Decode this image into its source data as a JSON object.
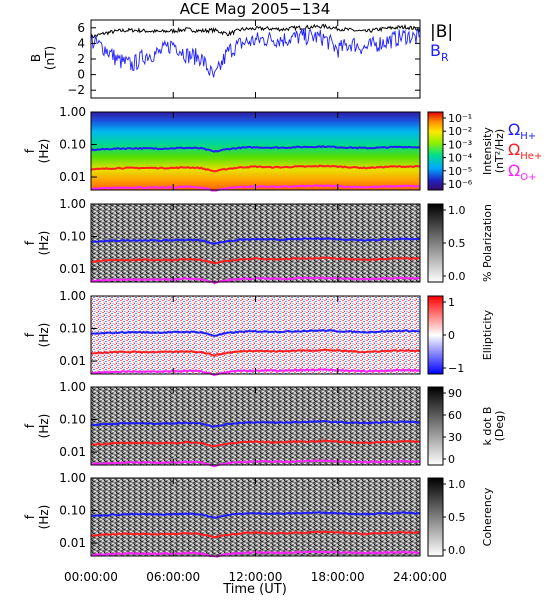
{
  "title": "ACE Mag 2005−134",
  "time_axis": {
    "label": "Time (UT)",
    "ticks": [
      "00:00:00",
      "06:00:00",
      "12:00:00",
      "18:00:00",
      "24:00:00"
    ],
    "range_hours": [
      0,
      24
    ]
  },
  "colors": {
    "B_total": "#000000",
    "B_R": "#1f1fff",
    "H_plus": "#1f1fff",
    "He_plus": "#ff1f1f",
    "O_plus": "#ff22ff"
  },
  "chart_data": [
    {
      "type": "line",
      "panel": "magnetic-field",
      "ylabel": "B",
      "yunit": "(nT)",
      "ylim": [
        -3,
        7
      ],
      "yticks": [
        "6",
        "4",
        "2",
        "0",
        "−2"
      ],
      "legend": [
        "|B|",
        "B"
      ],
      "legend_sub": [
        "",
        "R"
      ],
      "series": [
        {
          "name": "|B|",
          "x": [
            0,
            1,
            2,
            3,
            4,
            5,
            6,
            7,
            8,
            9,
            10,
            11,
            12,
            13,
            14,
            15,
            16,
            17,
            18,
            19,
            20,
            21,
            22,
            23,
            24
          ],
          "values": [
            4.8,
            5.3,
            5.6,
            5.7,
            5.6,
            5.5,
            5.6,
            5.8,
            5.6,
            5.7,
            5.2,
            5.8,
            5.9,
            5.9,
            5.8,
            6.0,
            6.1,
            6.2,
            5.9,
            5.7,
            5.5,
            5.8,
            6.0,
            6.1,
            5.8
          ]
        },
        {
          "name": "B_R",
          "x": [
            0,
            1,
            2,
            3,
            4,
            5,
            6,
            7,
            8,
            9,
            10,
            11,
            12,
            13,
            14,
            15,
            16,
            17,
            18,
            19,
            20,
            21,
            22,
            23,
            24
          ],
          "values": [
            4.3,
            3.4,
            1.8,
            1.2,
            2.5,
            2.8,
            4.0,
            2.5,
            2.2,
            -0.5,
            3.0,
            4.0,
            4.4,
            4.6,
            4.5,
            4.8,
            4.9,
            4.7,
            3.2,
            4.0,
            3.4,
            4.0,
            4.5,
            5.0,
            4.6
          ]
        }
      ]
    },
    {
      "type": "heatmap",
      "panel": "intensity",
      "ylabel": "f",
      "yunit": "(Hz)",
      "yscale": "log",
      "ylim": [
        0.004,
        1.0
      ],
      "yticks": [
        "1.00",
        "0.10",
        "0.01"
      ],
      "colorbar": {
        "label": "Intensity",
        "unit": "(nT²/Hz)",
        "ticks": [
          "10⁻¹",
          "10⁻²",
          "10⁻³",
          "10⁻⁴",
          "10⁻⁵",
          "10⁻⁶"
        ]
      },
      "gyrofrequency_legend": [
        "Ω",
        "Ω",
        "Ω"
      ],
      "gyrofrequency_legend_sub": [
        "H+",
        "He+",
        "O+"
      ]
    },
    {
      "type": "heatmap",
      "panel": "polarization",
      "ylabel": "f",
      "yunit": "(Hz)",
      "yscale": "log",
      "ylim": [
        0.004,
        1.0
      ],
      "yticks": [
        "1.00",
        "0.10",
        "0.01"
      ],
      "colorbar": {
        "label": "% Polarization",
        "ticks": [
          "1.0",
          "0.5",
          "0.0"
        ],
        "range": [
          0,
          1
        ]
      }
    },
    {
      "type": "heatmap",
      "panel": "ellipticity",
      "ylabel": "f",
      "yunit": "(Hz)",
      "yscale": "log",
      "ylim": [
        0.004,
        1.0
      ],
      "yticks": [
        "1.00",
        "0.10",
        "0.01"
      ],
      "colorbar": {
        "label": "Ellipticity",
        "ticks": [
          "1",
          "0",
          "−1"
        ],
        "range": [
          -1,
          1
        ]
      }
    },
    {
      "type": "heatmap",
      "panel": "k-dot-b",
      "ylabel": "f",
      "yunit": "(Hz)",
      "yscale": "log",
      "ylim": [
        0.004,
        1.0
      ],
      "yticks": [
        "1.00",
        "0.10",
        "0.01"
      ],
      "colorbar": {
        "label": "k dot B",
        "unit": "(Deg)",
        "ticks": [
          "90",
          "60",
          "30",
          "0"
        ],
        "range": [
          0,
          90
        ]
      }
    },
    {
      "type": "heatmap",
      "panel": "coherency",
      "ylabel": "f",
      "yunit": "(Hz)",
      "yscale": "log",
      "ylim": [
        0.004,
        1.0
      ],
      "yticks": [
        "1.00",
        "0.10",
        "0.01"
      ],
      "colorbar": {
        "label": "Coherency",
        "ticks": [
          "1.0",
          "0.5",
          "0.0"
        ],
        "range": [
          0,
          1
        ]
      }
    }
  ],
  "gyrofrequency_traces": {
    "x": [
      0,
      1,
      2,
      3,
      4,
      5,
      6,
      7,
      8,
      9,
      10,
      11,
      12,
      13,
      14,
      15,
      16,
      17,
      18,
      19,
      20,
      21,
      22,
      23,
      24
    ],
    "H_plus": [
      0.068,
      0.072,
      0.075,
      0.077,
      0.076,
      0.075,
      0.077,
      0.079,
      0.077,
      0.06,
      0.073,
      0.08,
      0.082,
      0.081,
      0.08,
      0.083,
      0.085,
      0.087,
      0.083,
      0.08,
      0.078,
      0.08,
      0.083,
      0.085,
      0.082
    ],
    "He_plus": [
      0.017,
      0.018,
      0.019,
      0.019,
      0.019,
      0.019,
      0.019,
      0.02,
      0.019,
      0.015,
      0.018,
      0.02,
      0.021,
      0.02,
      0.02,
      0.021,
      0.021,
      0.022,
      0.021,
      0.02,
      0.019,
      0.02,
      0.021,
      0.021,
      0.021
    ],
    "O_plus": [
      0.0043,
      0.0045,
      0.0047,
      0.0048,
      0.0047,
      0.0047,
      0.0048,
      0.005,
      0.0048,
      0.0038,
      0.0046,
      0.005,
      0.0051,
      0.0051,
      0.005,
      0.0052,
      0.0053,
      0.0054,
      0.0052,
      0.005,
      0.0049,
      0.005,
      0.0052,
      0.0053,
      0.0051
    ]
  }
}
